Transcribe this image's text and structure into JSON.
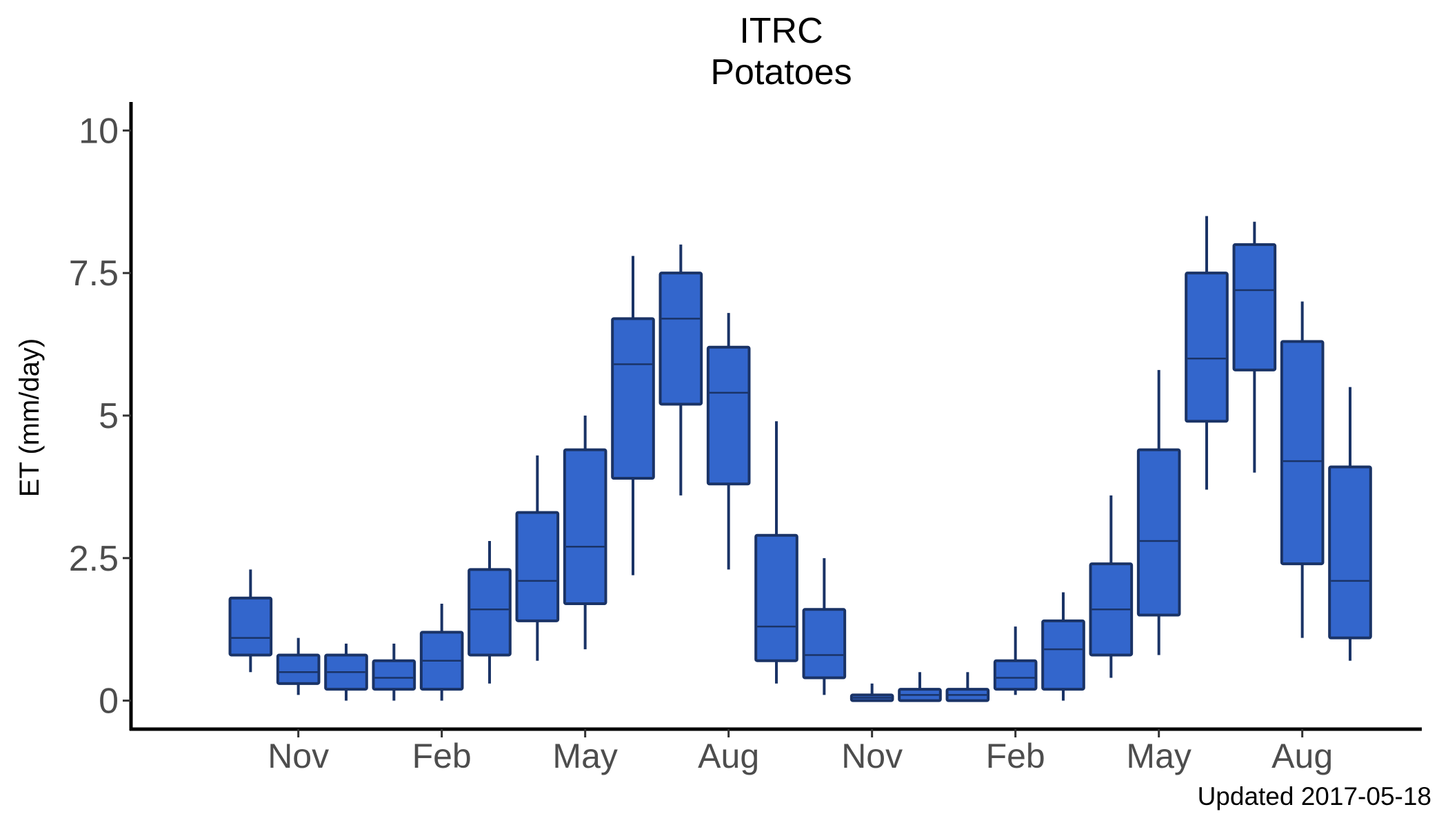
{
  "chart_data": {
    "type": "boxplot",
    "title": "ITRC",
    "subtitle": "Potatoes",
    "ylabel": "ET (mm/day)",
    "xlabel": "",
    "caption": "Updated  2017-05-18",
    "ylim": [
      -0.5,
      10.5
    ],
    "grid": false,
    "yticks": [
      {
        "value": 0,
        "label": "0"
      },
      {
        "value": 2.5,
        "label": "2.5"
      },
      {
        "value": 5,
        "label": "5"
      },
      {
        "value": 7.5,
        "label": "7.5"
      },
      {
        "value": 10,
        "label": "10"
      }
    ],
    "xlim": [
      -2.5,
      24.5
    ],
    "xticks": [
      {
        "value": 1,
        "label": "Nov"
      },
      {
        "value": 4,
        "label": "Feb"
      },
      {
        "value": 7,
        "label": "May"
      },
      {
        "value": 10,
        "label": "Aug"
      },
      {
        "value": 13,
        "label": "Nov"
      },
      {
        "value": 16,
        "label": "Feb"
      },
      {
        "value": 19,
        "label": "May"
      },
      {
        "value": 22,
        "label": "Aug"
      }
    ],
    "box_fill": "#3366cc",
    "box_stroke": "#1a3366",
    "boxes": [
      {
        "x": 0,
        "whisker_low": 0.5,
        "q1": 0.8,
        "median": 1.1,
        "q3": 1.8,
        "whisker_high": 2.3
      },
      {
        "x": 1,
        "whisker_low": 0.1,
        "q1": 0.3,
        "median": 0.5,
        "q3": 0.8,
        "whisker_high": 1.1
      },
      {
        "x": 2,
        "whisker_low": 0.0,
        "q1": 0.2,
        "median": 0.5,
        "q3": 0.8,
        "whisker_high": 1.0
      },
      {
        "x": 3,
        "whisker_low": 0.0,
        "q1": 0.2,
        "median": 0.4,
        "q3": 0.7,
        "whisker_high": 1.0
      },
      {
        "x": 4,
        "whisker_low": 0.0,
        "q1": 0.2,
        "median": 0.7,
        "q3": 1.2,
        "whisker_high": 1.7
      },
      {
        "x": 5,
        "whisker_low": 0.3,
        "q1": 0.8,
        "median": 1.6,
        "q3": 2.3,
        "whisker_high": 2.8
      },
      {
        "x": 6,
        "whisker_low": 0.7,
        "q1": 1.4,
        "median": 2.1,
        "q3": 3.3,
        "whisker_high": 4.3
      },
      {
        "x": 7,
        "whisker_low": 0.9,
        "q1": 1.7,
        "median": 2.7,
        "q3": 4.4,
        "whisker_high": 5.0
      },
      {
        "x": 8,
        "whisker_low": 2.2,
        "q1": 3.9,
        "median": 5.9,
        "q3": 6.7,
        "whisker_high": 7.8
      },
      {
        "x": 9,
        "whisker_low": 3.6,
        "q1": 5.2,
        "median": 6.7,
        "q3": 7.5,
        "whisker_high": 8.0
      },
      {
        "x": 10,
        "whisker_low": 2.3,
        "q1": 3.8,
        "median": 5.4,
        "q3": 6.2,
        "whisker_high": 6.8
      },
      {
        "x": 11,
        "whisker_low": 0.3,
        "q1": 0.7,
        "median": 1.3,
        "q3": 2.9,
        "whisker_high": 4.9
      },
      {
        "x": 12,
        "whisker_low": 0.1,
        "q1": 0.4,
        "median": 0.8,
        "q3": 1.6,
        "whisker_high": 2.5
      },
      {
        "x": 13,
        "whisker_low": 0.0,
        "q1": 0.0,
        "median": 0.05,
        "q3": 0.1,
        "whisker_high": 0.3
      },
      {
        "x": 14,
        "whisker_low": 0.0,
        "q1": 0.0,
        "median": 0.1,
        "q3": 0.2,
        "whisker_high": 0.5
      },
      {
        "x": 15,
        "whisker_low": 0.0,
        "q1": 0.0,
        "median": 0.1,
        "q3": 0.2,
        "whisker_high": 0.5
      },
      {
        "x": 16,
        "whisker_low": 0.1,
        "q1": 0.2,
        "median": 0.4,
        "q3": 0.7,
        "whisker_high": 1.3
      },
      {
        "x": 17,
        "whisker_low": 0.0,
        "q1": 0.2,
        "median": 0.9,
        "q3": 1.4,
        "whisker_high": 1.9
      },
      {
        "x": 18,
        "whisker_low": 0.4,
        "q1": 0.8,
        "median": 1.6,
        "q3": 2.4,
        "whisker_high": 3.6
      },
      {
        "x": 19,
        "whisker_low": 0.8,
        "q1": 1.5,
        "median": 2.8,
        "q3": 4.4,
        "whisker_high": 5.8
      },
      {
        "x": 20,
        "whisker_low": 3.7,
        "q1": 4.9,
        "median": 6.0,
        "q3": 7.5,
        "whisker_high": 8.5
      },
      {
        "x": 21,
        "whisker_low": 4.0,
        "q1": 5.8,
        "median": 7.2,
        "q3": 8.0,
        "whisker_high": 8.4
      },
      {
        "x": 22,
        "whisker_low": 1.1,
        "q1": 2.4,
        "median": 4.2,
        "q3": 6.3,
        "whisker_high": 7.0
      },
      {
        "x": 23,
        "whisker_low": 0.7,
        "q1": 1.1,
        "median": 2.1,
        "q3": 4.1,
        "whisker_high": 5.5
      }
    ]
  }
}
